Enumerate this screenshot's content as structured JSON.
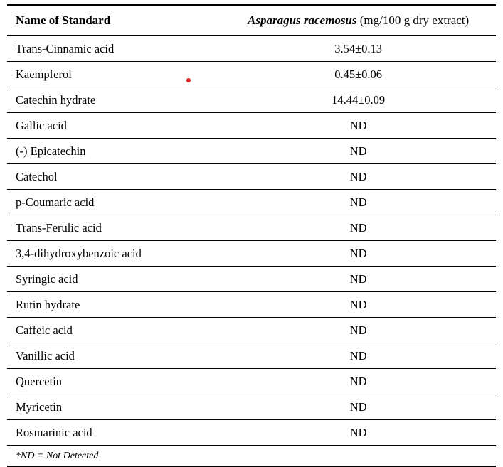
{
  "table": {
    "header": {
      "name_label": "Name of Standard",
      "species": "Asparagus racemosus",
      "unit": " (mg/100 g dry extract)"
    },
    "rows": [
      {
        "name": "Trans-Cinnamic acid",
        "value": "3.54±0.13"
      },
      {
        "name": "Kaempferol",
        "value": "0.45±0.06"
      },
      {
        "name": "Catechin hydrate",
        "value": "14.44±0.09"
      },
      {
        "name": "Gallic acid",
        "value": "ND"
      },
      {
        "name": "(-) Epicatechin",
        "value": "ND"
      },
      {
        "name": "Catechol",
        "value": "ND"
      },
      {
        "name": "p-Coumaric acid",
        "value": "ND"
      },
      {
        "name": "Trans-Ferulic acid",
        "value": "ND"
      },
      {
        "name": "3,4-dihydroxybenzoic acid",
        "value": "ND"
      },
      {
        "name": "Syringic acid",
        "value": "ND"
      },
      {
        "name": "Rutin hydrate",
        "value": "ND"
      },
      {
        "name": "Caffeic acid",
        "value": "ND"
      },
      {
        "name": "Vanillic acid",
        "value": "ND"
      },
      {
        "name": "Quercetin",
        "value": "ND"
      },
      {
        "name": "Myricetin",
        "value": "ND"
      },
      {
        "name": "Rosmarinic acid",
        "value": "ND"
      }
    ],
    "footnote": "*ND = Not Detected"
  },
  "colors": {
    "text": "#000000",
    "rule": "#000000",
    "background": "#ffffff",
    "red_dot": "#e02424"
  }
}
